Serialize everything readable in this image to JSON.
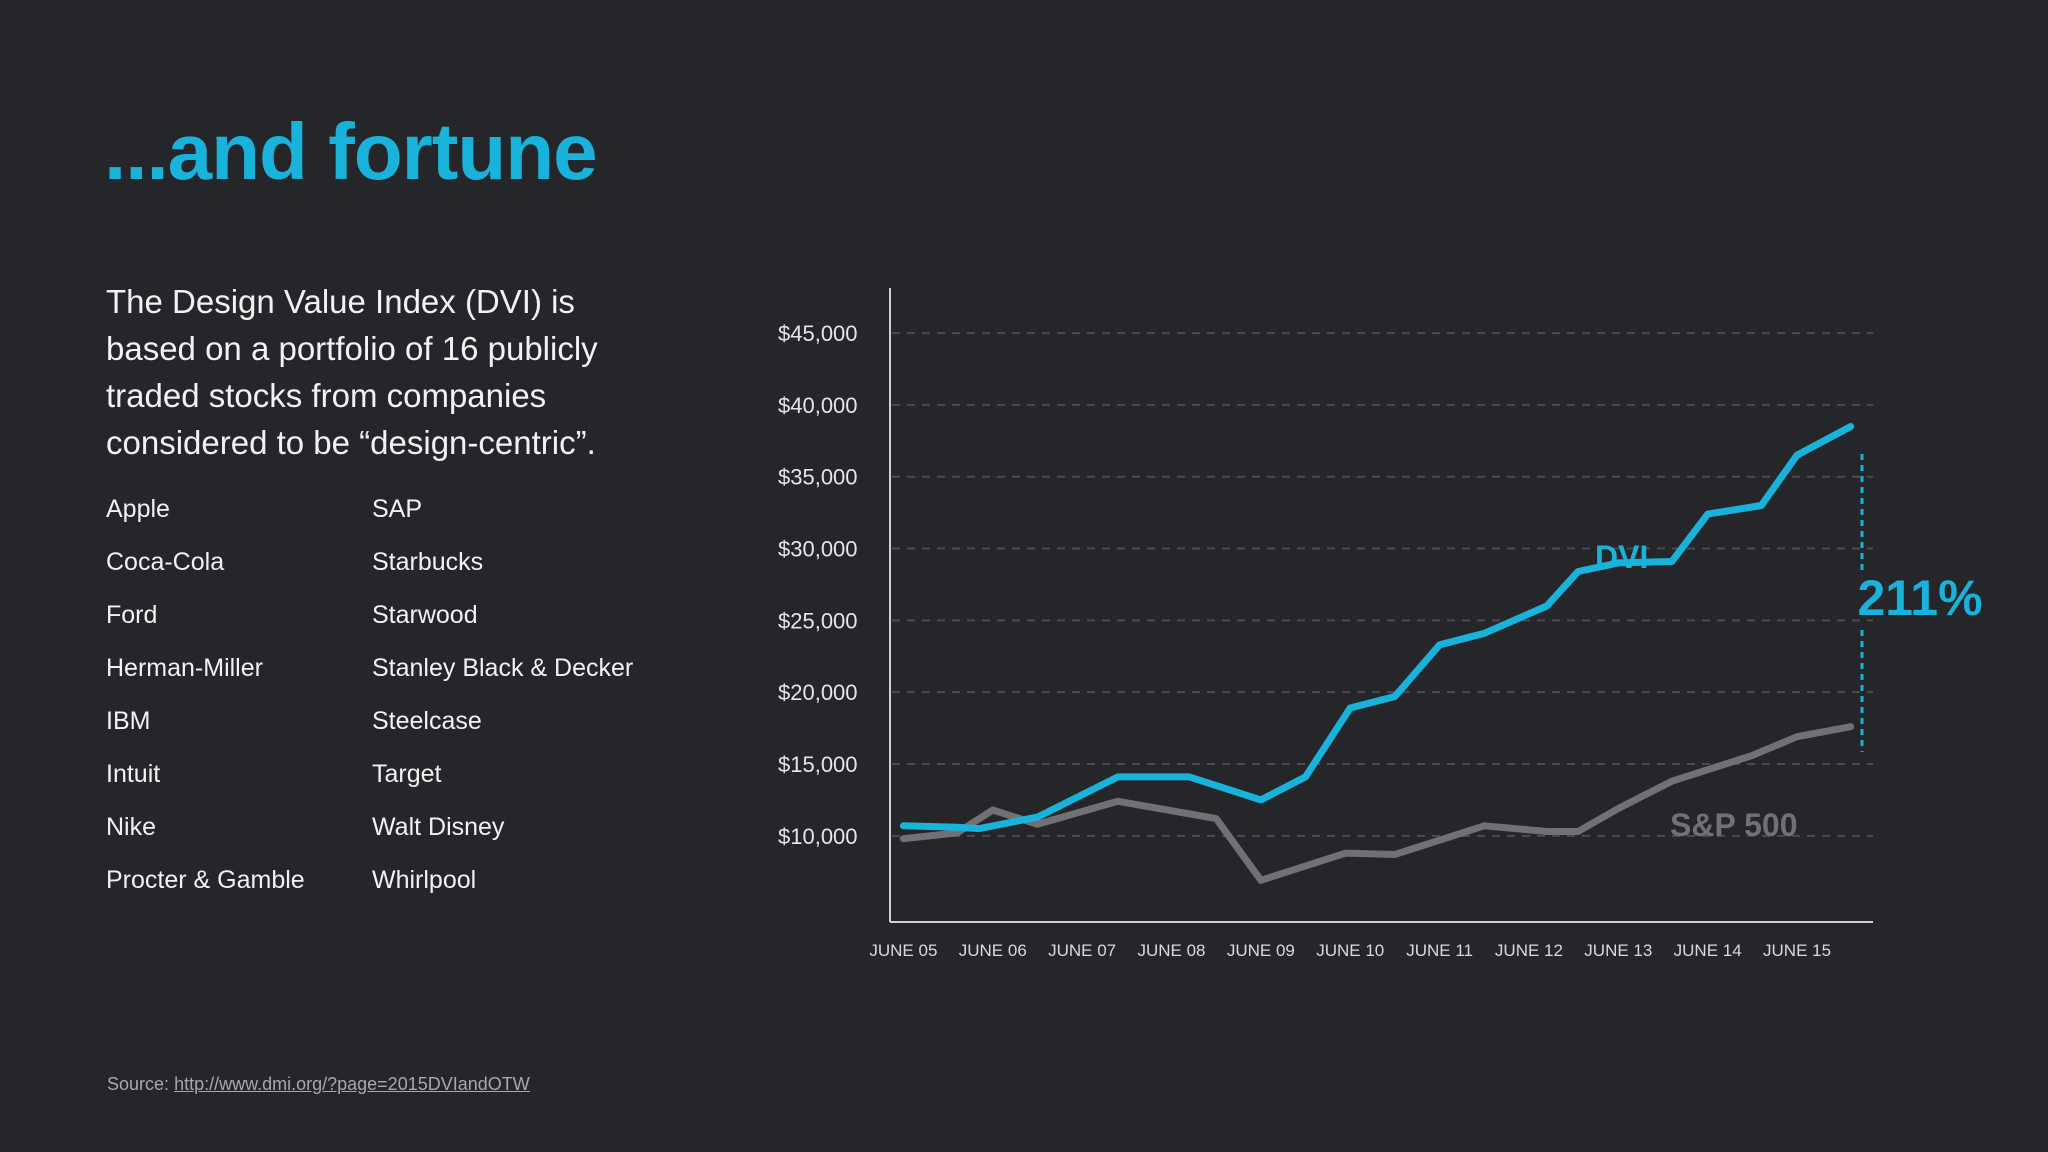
{
  "slide": {
    "title": "...and fortune",
    "intro": "The Design Value Index (DVI) is based on a portfolio of 16 publicly traded stocks from companies considered to be “design-centric”.",
    "companies_left": [
      "Apple",
      "Coca-Cola",
      "Ford",
      "Herman-Miller",
      "IBM",
      "Intuit",
      "Nike",
      "Procter & Gamble"
    ],
    "companies_right": [
      "SAP",
      "Starbucks",
      "Starwood",
      "Stanley Black & Decker",
      "Steelcase",
      "Target",
      "Walt Disney",
      "Whirlpool"
    ],
    "source_label": "Source:",
    "source_link": "http://www.dmi.org/?page=2015DVIandOTW"
  },
  "colors": {
    "background": "#252629",
    "accent": "#18b2da",
    "sp500": "#707174",
    "axis": "#d0d0d0",
    "grid": "#4a4b4f"
  },
  "chart_data": {
    "type": "line",
    "x_tick_labels": [
      "JUNE 05",
      "JUNE 06",
      "JUNE 07",
      "JUNE 08",
      "JUNE 09",
      "JUNE 10",
      "JUNE 11",
      "JUNE 12",
      "JUNE 13",
      "JUNE 14",
      "JUNE 15"
    ],
    "y_tick_labels": [
      "$10,000",
      "$15,000",
      "$20,000",
      "$25,000",
      "$30,000",
      "$35,000",
      "$40,000",
      "$45,000"
    ],
    "y_ticks": [
      10000,
      15000,
      20000,
      25000,
      30000,
      35000,
      40000,
      45000
    ],
    "ylim": [
      4000,
      48000
    ],
    "xlim": [
      2004.85,
      2015.85
    ],
    "grid": "horizontal dashed",
    "series": [
      {
        "name": "DVI",
        "x": [
          2005.0,
          2005.6,
          2005.85,
          2006.5,
          2007.4,
          2008.2,
          2009.0,
          2009.5,
          2010.0,
          2010.5,
          2011.0,
          2011.5,
          2012.2,
          2012.55,
          2013.0,
          2013.6,
          2014.0,
          2014.6,
          2015.0,
          2015.6
        ],
        "y": [
          10700,
          10600,
          10500,
          11300,
          14100,
          14100,
          12500,
          14100,
          18900,
          19700,
          23300,
          24100,
          26000,
          28400,
          29000,
          29100,
          32400,
          33000,
          36500,
          38500
        ]
      },
      {
        "name": "S&P 500",
        "x": [
          2005.0,
          2005.6,
          2006.0,
          2006.5,
          2007.4,
          2008.5,
          2009.0,
          2009.95,
          2010.5,
          2011.5,
          2012.2,
          2012.55,
          2013.0,
          2013.6,
          2014.5,
          2015.0,
          2015.6
        ],
        "y": [
          9800,
          10200,
          11800,
          10800,
          12400,
          11200,
          6900,
          8800,
          8700,
          10700,
          10300,
          10300,
          11900,
          13800,
          15600,
          16900,
          17600
        ]
      }
    ],
    "annotations": {
      "dvi_label": "DVI",
      "sp500_label": "S&P 500",
      "growth_label": "211%"
    }
  }
}
